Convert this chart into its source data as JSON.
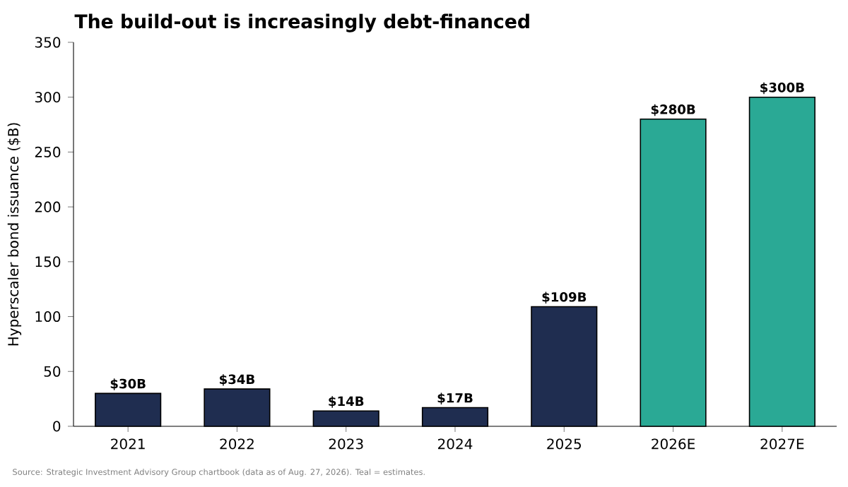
{
  "chart_data": {
    "type": "bar",
    "title": "The build-out is increasingly debt-financed",
    "ylabel": "Hyperscaler bond issuance ($B)",
    "categories": [
      "2021",
      "2022",
      "2023",
      "2024",
      "2025",
      "2026E",
      "2027E"
    ],
    "values": [
      30,
      34,
      14,
      17,
      109,
      280,
      300
    ],
    "colors": [
      "#1f2d50",
      "#1f2d50",
      "#1f2d50",
      "#1f2d50",
      "#1f2d50",
      "#2aa995",
      "#2aa995"
    ],
    "value_labels": [
      "$30B",
      "$34B",
      "$14B",
      "$17B",
      "$109B",
      "$280B",
      "$300B"
    ],
    "ylim": [
      0,
      350
    ],
    "yticks": [
      0,
      50,
      100,
      150,
      200,
      250,
      300,
      350
    ],
    "grid": false,
    "annotations": [
      "Source: Strategic Investment Advisory Group chartbook (data as of Aug. 27, 2026). Teal = estimates."
    ]
  }
}
